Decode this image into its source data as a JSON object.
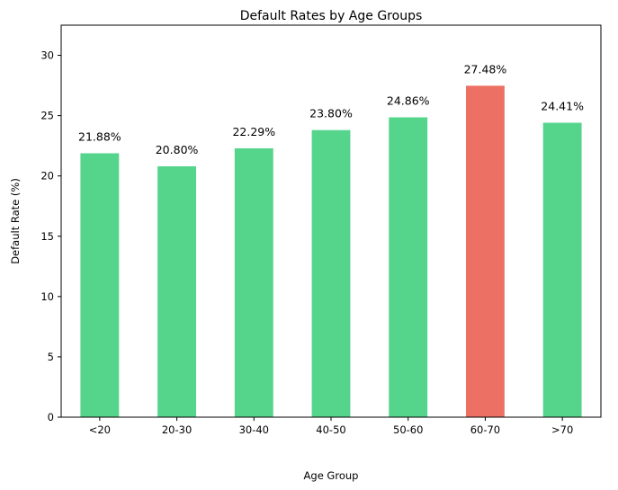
{
  "chart_data": {
    "type": "bar",
    "title": "Default Rates by Age Groups",
    "xlabel": "Age Group",
    "ylabel": "Default Rate (%)",
    "categories": [
      "<20",
      "20-30",
      "30-40",
      "40-50",
      "50-60",
      "60-70",
      ">70"
    ],
    "values": [
      21.88,
      20.8,
      22.29,
      23.8,
      24.86,
      27.48,
      24.41
    ],
    "data_labels": [
      "21.88%",
      "20.80%",
      "22.29%",
      "23.80%",
      "24.86%",
      "27.48%",
      "24.41%"
    ],
    "ylim": [
      0,
      32.5
    ],
    "yticks": [
      0,
      5,
      10,
      15,
      20,
      25,
      30
    ],
    "grid": false,
    "colors": {
      "default_bar": "#55d48c",
      "highlight_bar": "#ec7063"
    },
    "highlight_index": 5
  }
}
